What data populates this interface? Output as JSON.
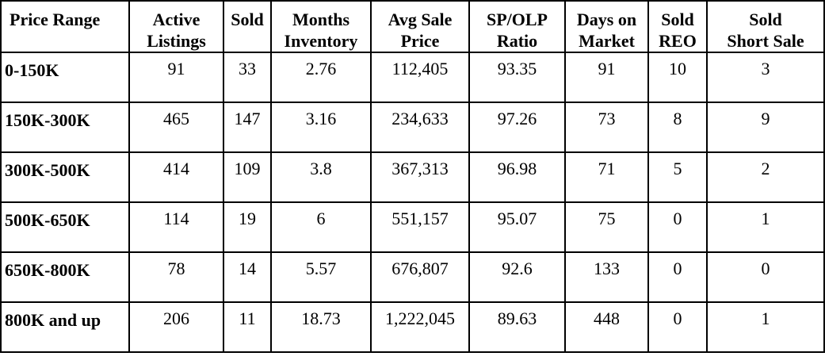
{
  "table": {
    "headers": [
      [
        "Price Range"
      ],
      [
        "Active",
        "Listings"
      ],
      [
        "Sold"
      ],
      [
        "Months",
        "Inventory"
      ],
      [
        "Avg Sale",
        "Price"
      ],
      [
        "SP/OLP",
        "Ratio"
      ],
      [
        "Days on",
        "Market"
      ],
      [
        "Sold",
        "REO"
      ],
      [
        "Sold",
        "Short Sale"
      ]
    ],
    "rows": [
      [
        "0-150K",
        "91",
        "33",
        "2.76",
        "112,405",
        "93.35",
        "91",
        "10",
        "3"
      ],
      [
        "150K-300K",
        "465",
        "147",
        "3.16",
        "234,633",
        "97.26",
        "73",
        "8",
        "9"
      ],
      [
        "300K-500K",
        "414",
        "109",
        "3.8",
        "367,313",
        "96.98",
        "71",
        "5",
        "2"
      ],
      [
        "500K-650K",
        "114",
        "19",
        "6",
        "551,157",
        "95.07",
        "75",
        "0",
        "1"
      ],
      [
        "650K-800K",
        "78",
        "14",
        "5.57",
        "676,807",
        "92.6",
        "133",
        "0",
        "0"
      ],
      [
        "800K and up",
        "206",
        "11",
        "18.73",
        "1,222,045",
        "89.63",
        "448",
        "0",
        "1"
      ]
    ]
  }
}
